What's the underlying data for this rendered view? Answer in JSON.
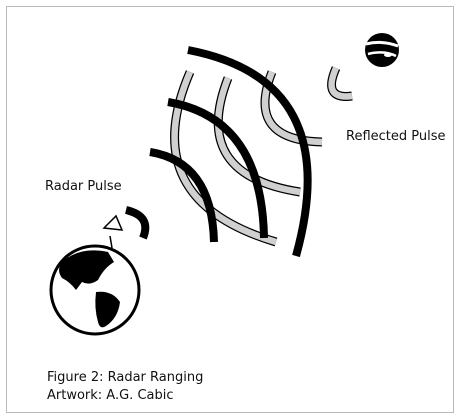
{
  "labels": {
    "radar_pulse": "Radar Pulse",
    "reflected_pulse": "Reflected Pulse"
  },
  "caption": {
    "title": "Figure 2: Radar Ranging",
    "credit": "Artwork: A.G. Cabic"
  }
}
